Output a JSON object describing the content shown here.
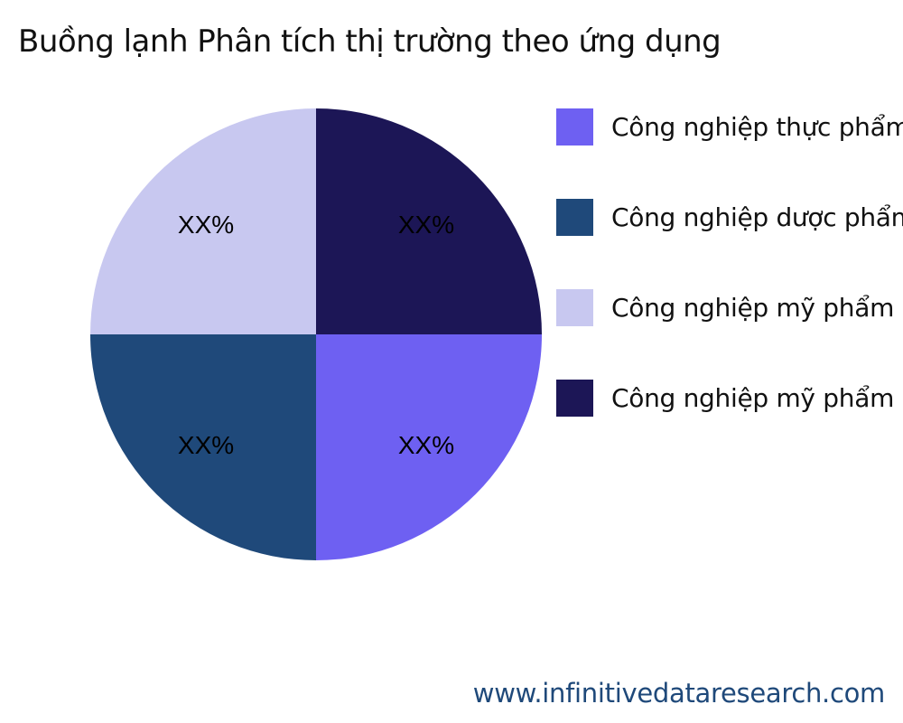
{
  "chart_data": {
    "type": "pie",
    "title": "Buồng lạnh Phân tích thị trường theo ứng dụng",
    "slices": [
      {
        "name": "Công nghiệp thực phẩm",
        "value": 25,
        "label": "XX%",
        "color": "#6e60f2"
      },
      {
        "name": "Công nghiệp dược phẩm",
        "value": 25,
        "label": "XX%",
        "color": "#1f497a"
      },
      {
        "name": "Công nghiệp mỹ phẩm",
        "value": 25,
        "label": "XX%",
        "color": "#c8c8f0"
      },
      {
        "name": "Công nghiệp mỹ phẩm",
        "value": 25,
        "label": "XX%",
        "color": "#1c1656"
      }
    ],
    "start_angle": "3 o'clock",
    "direction": "clockwise",
    "legend_position": "right"
  },
  "footer": {
    "source": "www.infinitivedataresearch.com"
  }
}
